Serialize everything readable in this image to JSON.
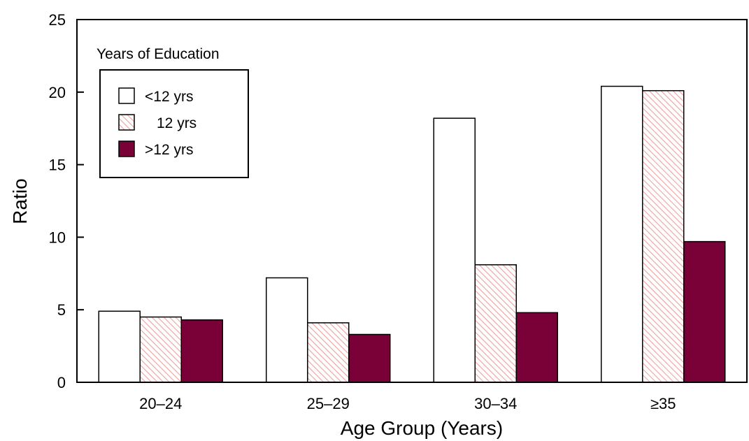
{
  "chart_data": {
    "type": "bar",
    "xlabel": "Age Group (Years)",
    "ylabel": "Ratio",
    "ylim": [
      0,
      25
    ],
    "yticks": [
      "0",
      "5",
      "10",
      "15",
      "20",
      "25"
    ],
    "categories": [
      "20–24",
      "25–29",
      "30–34",
      "≥35"
    ],
    "legend": {
      "title": "Years of Education",
      "placement": "top-left"
    },
    "series": [
      {
        "name": "<12 yrs",
        "values": [
          4.9,
          7.2,
          18.2,
          20.4
        ],
        "color": "#ffffff",
        "pattern": "none"
      },
      {
        "name": "12 yrs",
        "values": [
          4.5,
          4.1,
          8.1,
          20.1
        ],
        "color": "#f2b8b8",
        "pattern": "diagonal-hatch"
      },
      {
        "name": ">12 yrs",
        "values": [
          4.3,
          3.3,
          4.8,
          9.7
        ],
        "color": "#7a0038",
        "pattern": "none"
      }
    ],
    "grid": false
  }
}
